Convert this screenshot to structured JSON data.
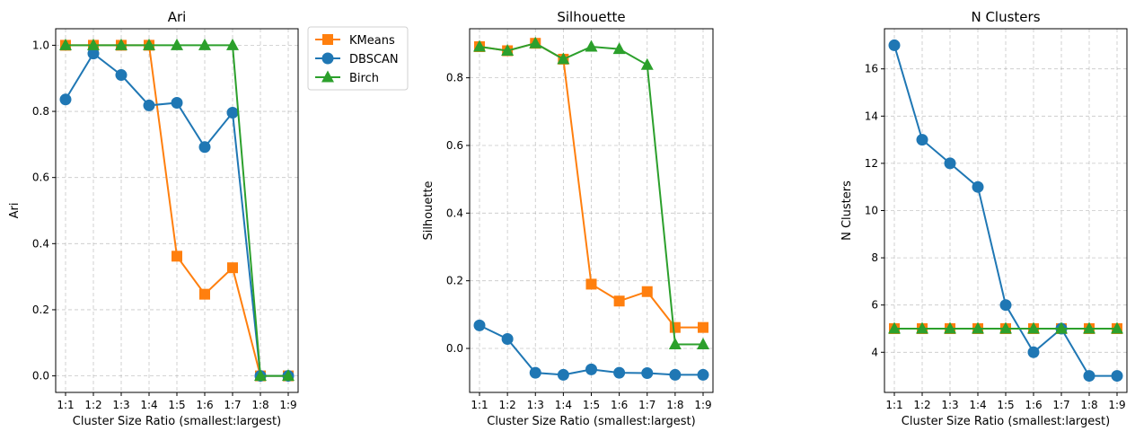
{
  "chart_data": [
    {
      "type": "line",
      "title": "Ari",
      "xlabel": "Cluster Size Ratio (smallest:largest)",
      "ylabel": "Ari",
      "categories": [
        "1:1",
        "1:2",
        "1:3",
        "1:4",
        "1:5",
        "1:6",
        "1:7",
        "1:8",
        "1:9"
      ],
      "ylim": [
        -0.05,
        1.05
      ],
      "yticks": [
        0.0,
        0.2,
        0.4,
        0.6,
        0.8,
        1.0
      ],
      "ytick_labels": [
        "0.0",
        "0.2",
        "0.4",
        "0.6",
        "0.8",
        "1.0"
      ],
      "grid": true,
      "legend": "outside-right",
      "series": [
        {
          "name": "KMeans",
          "color": "#ff7f0e",
          "marker": "square",
          "values": [
            1.0,
            1.0,
            1.0,
            1.0,
            0.362,
            0.247,
            0.327,
            0.0,
            0.0
          ]
        },
        {
          "name": "DBSCAN",
          "color": "#1f77b4",
          "marker": "circle",
          "values": [
            0.836,
            0.975,
            0.91,
            0.818,
            0.826,
            0.692,
            0.796,
            0.0,
            0.0
          ]
        },
        {
          "name": "Birch",
          "color": "#2ca02c",
          "marker": "triangle",
          "values": [
            1.0,
            1.0,
            1.0,
            1.0,
            1.0,
            1.0,
            1.0,
            0.0,
            0.0
          ]
        }
      ]
    },
    {
      "type": "line",
      "title": "Silhouette",
      "xlabel": "Cluster Size Ratio (smallest:largest)",
      "ylabel": "Silhouette",
      "categories": [
        "1:1",
        "1:2",
        "1:3",
        "1:4",
        "1:5",
        "1:6",
        "1:7",
        "1:8",
        "1:9"
      ],
      "ylim": [
        -0.13,
        0.945
      ],
      "yticks": [
        0.0,
        0.2,
        0.4,
        0.6,
        0.8
      ],
      "ytick_labels": [
        "0.0",
        "0.2",
        "0.4",
        "0.6",
        "0.8"
      ],
      "grid": true,
      "series": [
        {
          "name": "KMeans",
          "color": "#ff7f0e",
          "marker": "square",
          "values": [
            0.892,
            0.88,
            0.902,
            0.855,
            0.19,
            0.14,
            0.168,
            0.062,
            0.062
          ]
        },
        {
          "name": "DBSCAN",
          "color": "#1f77b4",
          "marker": "circle",
          "values": [
            0.068,
            0.028,
            -0.072,
            -0.078,
            -0.062,
            -0.072,
            -0.073,
            -0.078,
            -0.078
          ]
        },
        {
          "name": "Birch",
          "color": "#2ca02c",
          "marker": "triangle",
          "values": [
            0.892,
            0.88,
            0.902,
            0.855,
            0.892,
            0.885,
            0.838,
            0.012,
            0.012
          ]
        }
      ]
    },
    {
      "type": "line",
      "title": "N Clusters",
      "xlabel": "Cluster Size Ratio (smallest:largest)",
      "ylabel": "N Clusters",
      "categories": [
        "1:1",
        "1:2",
        "1:3",
        "1:4",
        "1:5",
        "1:6",
        "1:7",
        "1:8",
        "1:9"
      ],
      "ylim": [
        2.3,
        17.7
      ],
      "yticks": [
        4,
        6,
        8,
        10,
        12,
        14,
        16
      ],
      "ytick_labels": [
        "4",
        "6",
        "8",
        "10",
        "12",
        "14",
        "16"
      ],
      "grid": true,
      "series": [
        {
          "name": "KMeans",
          "color": "#ff7f0e",
          "marker": "square",
          "values": [
            5,
            5,
            5,
            5,
            5,
            5,
            5,
            5,
            5
          ]
        },
        {
          "name": "DBSCAN",
          "color": "#1f77b4",
          "marker": "circle",
          "values": [
            17,
            13,
            12,
            11,
            6,
            4,
            5,
            3,
            3
          ]
        },
        {
          "name": "Birch",
          "color": "#2ca02c",
          "marker": "triangle",
          "values": [
            5,
            5,
            5,
            5,
            5,
            5,
            5,
            5,
            5
          ]
        }
      ]
    }
  ],
  "legend": {
    "items": [
      {
        "label": "KMeans",
        "color": "#ff7f0e",
        "marker": "square"
      },
      {
        "label": "DBSCAN",
        "color": "#1f77b4",
        "marker": "circle"
      },
      {
        "label": "Birch",
        "color": "#2ca02c",
        "marker": "triangle"
      }
    ]
  }
}
